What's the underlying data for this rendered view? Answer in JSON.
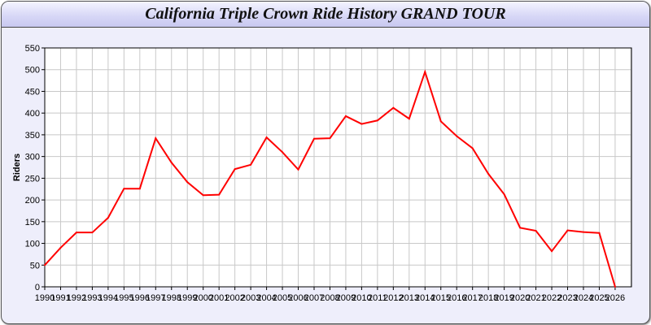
{
  "chart_data": {
    "type": "line",
    "title": "California Triple Crown Ride History GRAND TOUR",
    "xlabel": "",
    "ylabel": "Riders",
    "xlim": [
      1990,
      2027
    ],
    "ylim": [
      0,
      550
    ],
    "yticks": [
      0,
      50,
      100,
      150,
      200,
      250,
      300,
      350,
      400,
      450,
      500,
      550
    ],
    "grid": true,
    "x": [
      1990,
      1991,
      1992,
      1993,
      1994,
      1995,
      1996,
      1997,
      1998,
      1999,
      2000,
      2001,
      2002,
      2003,
      2004,
      2005,
      2006,
      2007,
      2008,
      2009,
      2010,
      2011,
      2012,
      2013,
      2014,
      2015,
      2016,
      2017,
      2018,
      2019,
      2020,
      2021,
      2022,
      2023,
      2024,
      2025,
      2026
    ],
    "series": [
      {
        "color": "#ff0000",
        "values": [
          50,
          90,
          125,
          125,
          159,
          226,
          226,
          342,
          286,
          241,
          211,
          212,
          271,
          281,
          344,
          310,
          270,
          341,
          342,
          393,
          375,
          383,
          412,
          387,
          495,
          381,
          347,
          319,
          260,
          213,
          136,
          129,
          82,
          130,
          126,
          124,
          0
        ]
      }
    ]
  }
}
